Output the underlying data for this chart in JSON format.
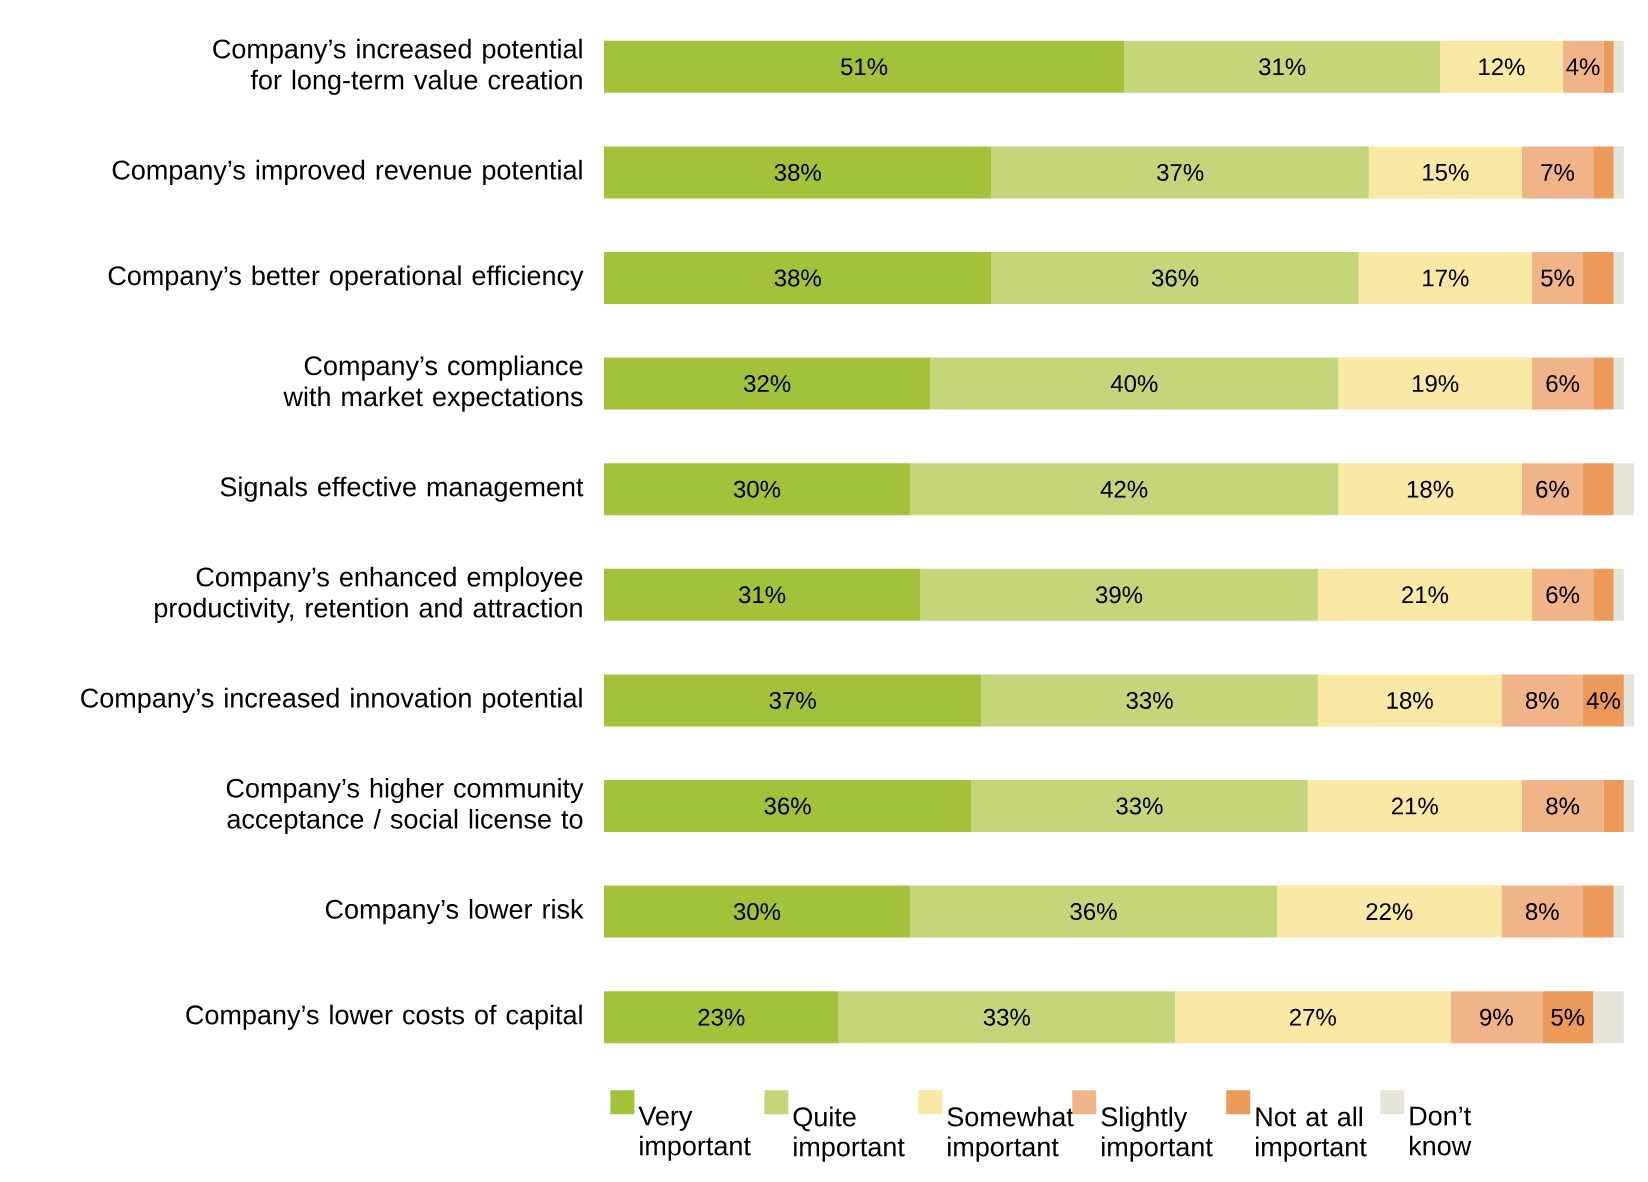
{
  "chart_data": {
    "type": "bar",
    "orientation": "horizontal",
    "stacked": true,
    "legend": "bottom",
    "xlim": [
      0,
      101
    ],
    "tick_labels": "y",
    "categories": [
      "Company’s increased potential for long-term value creation",
      "Company’s improved revenue potential",
      "Company’s better operational efficiency",
      "Company’s compliance with market expectations",
      "Signals effective management",
      "Company’s enhanced employee productivity, retention and attraction",
      "Company’s increased innovation potential",
      "Company’s higher community acceptance / social license to",
      "Company’s lower risk",
      "Company’s lower costs of capital"
    ],
    "series": [
      {
        "name": "Very important",
        "color": "#a3c13b",
        "values": [
          51,
          38,
          38,
          32,
          30,
          31,
          37,
          36,
          30,
          23
        ],
        "value_labels": [
          "51%",
          "38%",
          "38%",
          "32%",
          "30%",
          "31%",
          "37%",
          "36%",
          "30%",
          "23%"
        ]
      },
      {
        "name": "Quite important",
        "color": "#c5d57a",
        "values": [
          31,
          37,
          36,
          40,
          42,
          39,
          33,
          33,
          36,
          33
        ],
        "value_labels": [
          "31%",
          "37%",
          "36%",
          "40%",
          "42%",
          "39%",
          "33%",
          "33%",
          "36%",
          "33%"
        ]
      },
      {
        "name": "Somewhat important",
        "color": "#fae8a6",
        "values": [
          12,
          15,
          17,
          19,
          18,
          21,
          18,
          21,
          22,
          27
        ],
        "value_labels": [
          "12%",
          "15%",
          "17%",
          "19%",
          "18%",
          "21%",
          "18%",
          "21%",
          "22%",
          "27%"
        ]
      },
      {
        "name": "Slightly important",
        "color": "#f0b488",
        "values": [
          4,
          7,
          5,
          6,
          6,
          6,
          8,
          8,
          8,
          9
        ],
        "value_labels": [
          "4%",
          "7%",
          "5%",
          "6%",
          "6%",
          "6%",
          "8%",
          "8%",
          "8%",
          "9%"
        ]
      },
      {
        "name": "Not at all important",
        "color": "#eb9a5a",
        "values": [
          1,
          2,
          3,
          2,
          3,
          2,
          4,
          2,
          3,
          5
        ],
        "value_labels": [
          null,
          null,
          null,
          null,
          null,
          null,
          "4%",
          null,
          null,
          "5%"
        ]
      },
      {
        "name": "Don’t know",
        "color": "#e5e4d6",
        "values": [
          1,
          1,
          1,
          1,
          2,
          1,
          1,
          1,
          1,
          3
        ],
        "value_labels": [
          null,
          null,
          null,
          null,
          null,
          null,
          null,
          null,
          null,
          null
        ]
      }
    ]
  }
}
